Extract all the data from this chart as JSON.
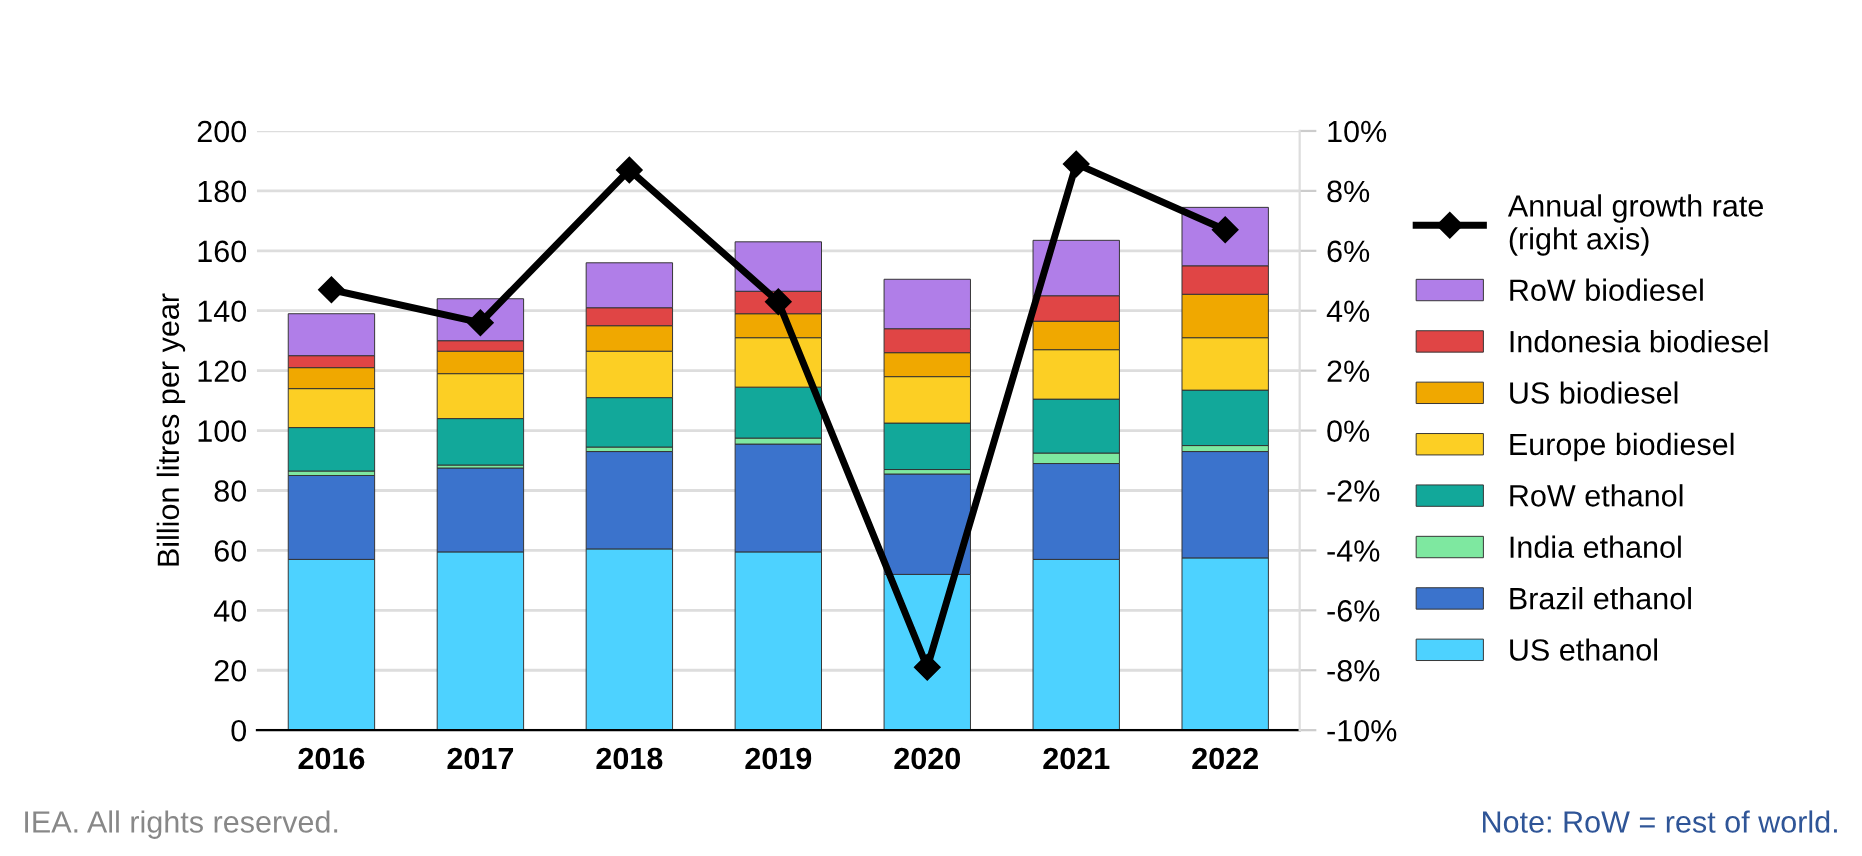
{
  "chart_data": {
    "type": "bar",
    "stacked": true,
    "ylabel": "Billion litres per year",
    "categories": [
      "2016",
      "2017",
      "2018",
      "2019",
      "2020",
      "2021",
      "2022"
    ],
    "ylim": [
      0,
      200
    ],
    "yticks": [
      0,
      20,
      40,
      60,
      80,
      100,
      120,
      140,
      160,
      180,
      200
    ],
    "y2lim": [
      -10,
      10
    ],
    "y2ticks": [
      {
        "value": 10,
        "label": "10%"
      },
      {
        "value": 8,
        "label": "8%"
      },
      {
        "value": 6,
        "label": "6%"
      },
      {
        "value": 4,
        "label": "4%"
      },
      {
        "value": 2,
        "label": "2%"
      },
      {
        "value": 0,
        "label": "0%"
      },
      {
        "value": -2,
        "label": "-2%"
      },
      {
        "value": -4,
        "label": "-4%"
      },
      {
        "value": -6,
        "label": "-6%"
      },
      {
        "value": -8,
        "label": "-8%"
      },
      {
        "value": -10,
        "label": "-10%"
      }
    ],
    "grid": "y",
    "legend": "right",
    "series": [
      {
        "name": "US ethanol",
        "color": "#4dd2ff",
        "values": [
          57,
          59.5,
          60.5,
          59.5,
          52,
          57,
          57.5
        ]
      },
      {
        "name": "Brazil ethanol",
        "color": "#3b73cc",
        "values": [
          28,
          28,
          32.5,
          36,
          33.5,
          32,
          35.5
        ]
      },
      {
        "name": "India ethanol",
        "color": "#7ee8a0",
        "values": [
          1.5,
          1,
          1.5,
          2,
          1.5,
          3.5,
          2
        ]
      },
      {
        "name": "RoW ethanol",
        "color": "#12a89a",
        "values": [
          14.5,
          15.5,
          16.5,
          17,
          15.5,
          18,
          18.5
        ]
      },
      {
        "name": "Europe biodiesel",
        "color": "#fccf24",
        "values": [
          13,
          15,
          15.5,
          16.5,
          15.5,
          16.5,
          17.5
        ]
      },
      {
        "name": "US biodiesel",
        "color": "#f0a800",
        "values": [
          7,
          7.5,
          8.5,
          8,
          8,
          9.5,
          14.5
        ]
      },
      {
        "name": "Indonesia biodiesel",
        "color": "#e04545",
        "values": [
          4,
          3.5,
          6,
          7.5,
          8,
          8.5,
          9.5
        ]
      },
      {
        "name": "RoW biodiesel",
        "color": "#b07ee8",
        "values": [
          14,
          14,
          15,
          16.5,
          16.5,
          18.5,
          19.5
        ]
      },
      {
        "name": "Annual growth rate\n(right axis)",
        "type": "line",
        "axis": "y2",
        "color": "#000000",
        "marker": "diamond",
        "values": [
          4.7,
          3.6,
          8.7,
          4.3,
          -7.9,
          8.9,
          6.7
        ]
      }
    ],
    "annotations": [
      "IEA. All rights reserved.",
      "Note: RoW = rest of world."
    ]
  }
}
